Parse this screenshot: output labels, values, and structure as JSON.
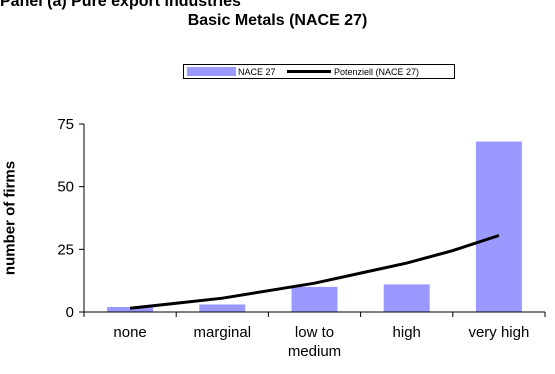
{
  "panel_title": "Panel (a) Pure export industries",
  "chart_data": {
    "type": "bar",
    "title": "Basic Metals (NACE 27)",
    "xlabel": "",
    "ylabel": "number of firms",
    "categories": [
      [
        "none"
      ],
      [
        "marginal"
      ],
      [
        "low to",
        "medium"
      ],
      [
        "high"
      ],
      [
        "very high"
      ]
    ],
    "ylim": [
      0,
      75
    ],
    "yticks": [
      0,
      25,
      50,
      75
    ],
    "grid": false,
    "legend_position": "top",
    "series": [
      {
        "name": "NACE 27",
        "type": "bar",
        "color": "#9999ff",
        "values": [
          2,
          3,
          10,
          11,
          68
        ]
      },
      {
        "name": "Potenziell (NACE 27)",
        "type": "line",
        "color": "#000000",
        "x": [
          0,
          0.5,
          1,
          1.5,
          2,
          2.5,
          3,
          3.5,
          4
        ],
        "values": [
          1.5,
          3.5,
          5.5,
          8.5,
          11.5,
          15.5,
          19.5,
          24.5,
          30.5
        ]
      }
    ]
  }
}
